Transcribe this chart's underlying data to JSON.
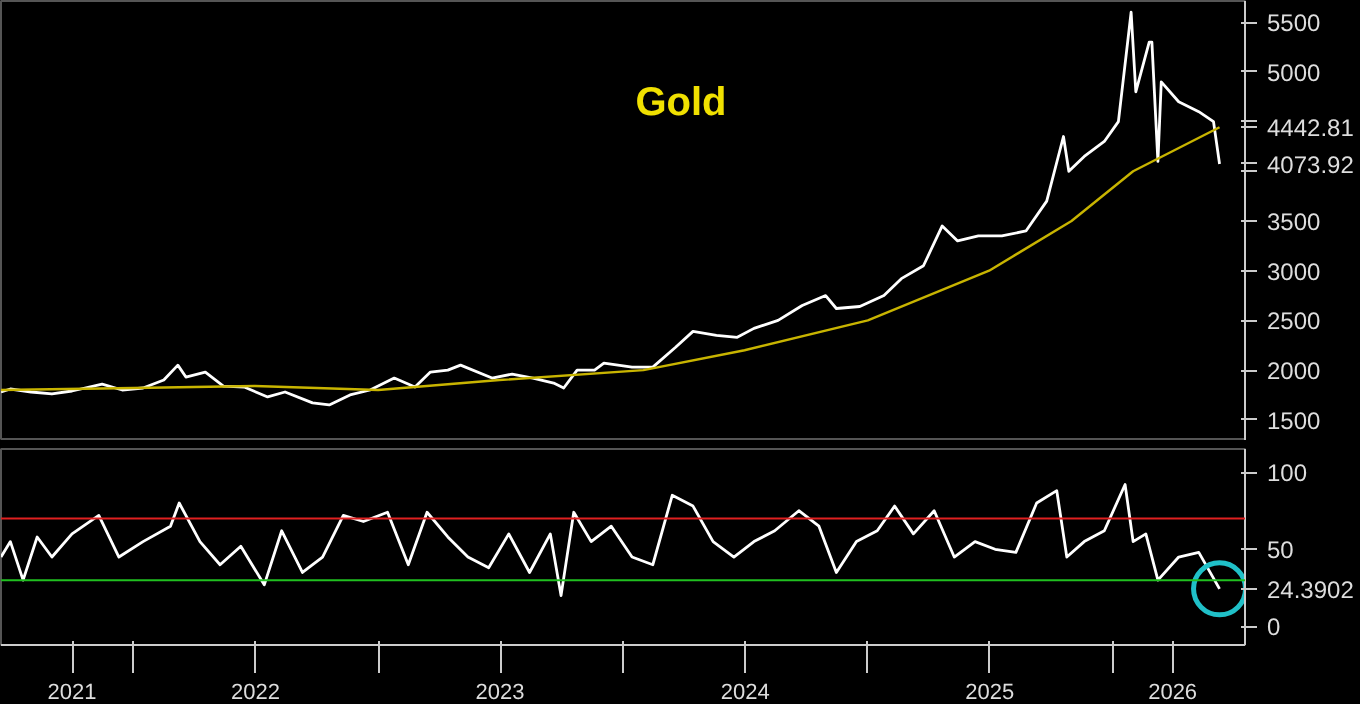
{
  "chart_data": [
    {
      "type": "line",
      "title": "Gold",
      "xlim": [
        "2021-06-17",
        "2026-07-18"
      ],
      "ylim": [
        1287,
        5713
      ],
      "yticks": [
        1500,
        2000,
        2500,
        3000,
        3500,
        {
          "value": 4000,
          "label": null
        },
        {
          "value": 4073.92,
          "label": "4073.92"
        },
        {
          "value": 4442.81,
          "label": "4442.81"
        },
        {
          "value": 4500,
          "label": null
        },
        5000,
        5500
      ],
      "tick_labels": "y",
      "grid": false,
      "series": [
        {
          "color": "#ffffff",
          "x": [
            "2021-06-17",
            "2021-07-01",
            "2021-08-01",
            "2021-09-01",
            "2021-10-01",
            "2021-11-15",
            "2021-12-15",
            "2022-01-15",
            "2022-02-15",
            "2022-03-08",
            "2022-03-20",
            "2022-04-18",
            "2022-05-15",
            "2022-06-15",
            "2022-07-20",
            "2022-08-15",
            "2022-09-25",
            "2022-10-20",
            "2022-11-20",
            "2022-12-20",
            "2023-01-25",
            "2023-02-25",
            "2023-03-20",
            "2023-04-15",
            "2023-05-04",
            "2023-06-20",
            "2023-07-20",
            "2023-08-20",
            "2023-09-20",
            "2023-10-05",
            "2023-10-25",
            "2023-11-20",
            "2023-12-04",
            "2024-01-15",
            "2024-02-15",
            "2024-03-20",
            "2024-04-15",
            "2024-05-20",
            "2024-06-20",
            "2024-07-15",
            "2024-08-20",
            "2024-09-25",
            "2024-10-30",
            "2024-11-15",
            "2024-12-20",
            "2025-01-25",
            "2025-02-20",
            "2025-03-25",
            "2025-04-22",
            "2025-05-15",
            "2025-06-15",
            "2025-07-20",
            "2025-08-25",
            "2025-09-25",
            "2025-10-20",
            "2025-10-28",
            "2025-11-20",
            "2025-12-20",
            "2026-01-10",
            "2026-01-29",
            "2026-02-05",
            "2026-02-25",
            "2026-03-01",
            "2026-03-10",
            "2026-03-15",
            "2026-04-10",
            "2026-05-10",
            "2026-06-01",
            "2026-06-10"
          ],
          "values": [
            1780,
            1810,
            1780,
            1760,
            1790,
            1860,
            1800,
            1820,
            1900,
            2050,
            1930,
            1980,
            1840,
            1830,
            1730,
            1780,
            1670,
            1650,
            1750,
            1800,
            1920,
            1830,
            1980,
            2000,
            2050,
            1920,
            1960,
            1920,
            1870,
            1820,
            2000,
            2000,
            2070,
            2030,
            2030,
            2230,
            2390,
            2350,
            2330,
            2420,
            2500,
            2650,
            2750,
            2620,
            2640,
            2750,
            2920,
            3050,
            3450,
            3300,
            3350,
            3350,
            3400,
            3700,
            4350,
            4000,
            4150,
            4300,
            4500,
            5600,
            4800,
            5300,
            5300,
            4100,
            4900,
            4700,
            4600,
            4500,
            4073.92
          ]
        },
        {
          "color": "#c8b400",
          "x": [
            "2021-06-17",
            "2022-01-01",
            "2022-07-01",
            "2023-01-01",
            "2023-07-01",
            "2024-02-01",
            "2024-07-01",
            "2025-01-01",
            "2025-07-01",
            "2025-11-01",
            "2026-02-01",
            "2026-06-10"
          ],
          "values": [
            1800,
            1820,
            1840,
            1800,
            1900,
            2000,
            2200,
            2500,
            3000,
            3500,
            4000,
            4442.81
          ]
        }
      ]
    },
    {
      "type": "line",
      "xlim": [
        "2021-06-17",
        "2026-07-18"
      ],
      "ylim": [
        -12,
        115
      ],
      "yticks": [
        0,
        50,
        100
      ],
      "grid": false,
      "xticks": [
        {
          "value": "2021-10-01",
          "label": "2021"
        },
        {
          "value": "2022-01-01",
          "label": null
        },
        {
          "value": "2022-07-02",
          "label": "2022"
        },
        {
          "value": "2023-01-01",
          "label": null
        },
        {
          "value": "2023-07-02",
          "label": "2023"
        },
        {
          "value": "2024-01-01",
          "label": null
        },
        {
          "value": "2024-07-02",
          "label": "2024"
        },
        {
          "value": "2025-01-01",
          "label": null
        },
        {
          "value": "2025-07-02",
          "label": "2025"
        },
        {
          "value": "2026-01-01",
          "label": null
        },
        {
          "value": "2026-04-01",
          "label": "2026"
        }
      ],
      "ref_lines": [
        {
          "axis": "y",
          "value": 70,
          "color": "#e02020"
        },
        {
          "axis": "y",
          "value": 30,
          "color": "#20c020"
        }
      ],
      "annotations": [
        {
          "text": "24.3902",
          "x": "2026-06-10",
          "y": 24.3902
        }
      ],
      "series": [
        {
          "color": "#ffffff",
          "x": [
            "2021-06-17",
            "2021-07-01",
            "2021-07-20",
            "2021-08-10",
            "2021-09-01",
            "2021-10-01",
            "2021-11-10",
            "2021-12-10",
            "2022-01-15",
            "2022-02-25",
            "2022-03-10",
            "2022-04-10",
            "2022-05-10",
            "2022-06-10",
            "2022-07-15",
            "2022-08-10",
            "2022-09-10",
            "2022-10-10",
            "2022-11-10",
            "2022-12-10",
            "2023-01-15",
            "2023-02-15",
            "2023-03-15",
            "2023-04-15",
            "2023-05-15",
            "2023-06-15",
            "2023-07-15",
            "2023-08-15",
            "2023-09-15",
            "2023-10-01",
            "2023-10-20",
            "2023-11-15",
            "2023-12-15",
            "2024-01-15",
            "2024-02-15",
            "2024-03-15",
            "2024-04-15",
            "2024-05-15",
            "2024-06-15",
            "2024-07-15",
            "2024-08-15",
            "2024-09-20",
            "2024-10-20",
            "2024-11-15",
            "2024-12-15",
            "2025-01-15",
            "2025-02-10",
            "2025-03-10",
            "2025-04-10",
            "2025-05-10",
            "2025-06-10",
            "2025-07-10",
            "2025-08-10",
            "2025-09-10",
            "2025-10-10",
            "2025-10-25",
            "2025-11-20",
            "2025-12-20",
            "2026-01-20",
            "2026-02-01",
            "2026-02-20",
            "2026-03-10",
            "2026-04-10",
            "2026-05-10",
            "2026-06-10"
          ],
          "values": [
            45,
            55,
            30,
            58,
            45,
            60,
            72,
            45,
            55,
            65,
            80,
            55,
            40,
            52,
            27,
            62,
            35,
            45,
            72,
            68,
            74,
            40,
            74,
            58,
            45,
            38,
            60,
            35,
            60,
            20,
            74,
            55,
            65,
            45,
            40,
            85,
            78,
            55,
            45,
            55,
            62,
            75,
            65,
            35,
            55,
            62,
            78,
            60,
            75,
            45,
            55,
            50,
            48,
            80,
            88,
            45,
            55,
            62,
            92,
            55,
            60,
            30,
            45,
            48,
            24.3902
          ]
        }
      ]
    }
  ]
}
